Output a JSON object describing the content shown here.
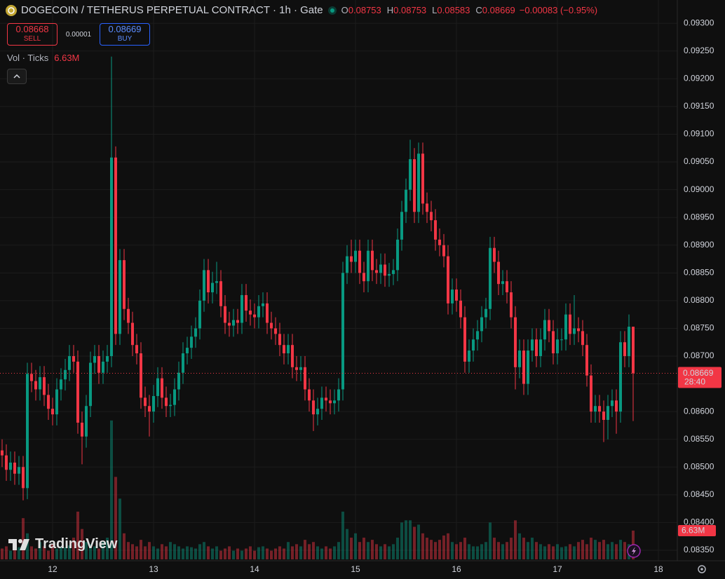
{
  "chart_data": {
    "type": "candlestick",
    "title": "DOGECOIN / TETHERUS PERPETUAL CONTRACT · 1h · Gate",
    "ohlc": [
      {
        "label": "O",
        "value": "0.08753"
      },
      {
        "label": "H",
        "value": "0.08753"
      },
      {
        "label": "L",
        "value": "0.08583"
      },
      {
        "label": "C",
        "value": "0.08669"
      }
    ],
    "change": "−0.00083 (−0.95%)",
    "sell": {
      "price": "0.08668",
      "label": "SELL"
    },
    "spread": "0.00001",
    "buy": {
      "price": "0.08669",
      "label": "BUY"
    },
    "volume_legend": {
      "label": "Vol · Ticks",
      "value": "6.63M"
    },
    "brand": "TradingView",
    "up_color": "#089981",
    "down_color": "#f23645",
    "grid": true,
    "xlim": [
      275.5,
      436.5
    ],
    "xticks": [
      {
        "value": 288,
        "label": "12"
      },
      {
        "value": 312,
        "label": "13"
      },
      {
        "value": 336,
        "label": "14"
      },
      {
        "value": 360,
        "label": "15"
      },
      {
        "value": 384,
        "label": "16"
      },
      {
        "value": 408,
        "label": "17"
      },
      {
        "value": 432,
        "label": "18"
      }
    ],
    "ylim": [
      0.08331,
      0.09342
    ],
    "yticks": [
      {
        "value": 0.0835,
        "label": "0.08350"
      },
      {
        "value": 0.084,
        "label": "0.08400"
      },
      {
        "value": 0.0845,
        "label": "0.08450"
      },
      {
        "value": 0.085,
        "label": "0.08500"
      },
      {
        "value": 0.0855,
        "label": "0.08550"
      },
      {
        "value": 0.086,
        "label": "0.08600"
      },
      {
        "value": 0.0865,
        "label": "0.08650"
      },
      {
        "value": 0.087,
        "label": "0.08700"
      },
      {
        "value": 0.0875,
        "label": "0.08750"
      },
      {
        "value": 0.088,
        "label": "0.08800"
      },
      {
        "value": 0.0885,
        "label": "0.08850"
      },
      {
        "value": 0.089,
        "label": "0.08900"
      },
      {
        "value": 0.0895,
        "label": "0.08950"
      },
      {
        "value": 0.09,
        "label": "0.09000"
      },
      {
        "value": 0.0905,
        "label": "0.09050"
      },
      {
        "value": 0.091,
        "label": "0.09100"
      },
      {
        "value": 0.0915,
        "label": "0.09150"
      },
      {
        "value": 0.092,
        "label": "0.09200"
      },
      {
        "value": 0.0925,
        "label": "0.09250"
      },
      {
        "value": 0.093,
        "label": "0.09300"
      }
    ],
    "last_price": {
      "value": 0.08669,
      "label": "0.08669"
    },
    "countdown": "28:40",
    "last_volume": {
      "value": 6.63,
      "label": "6.63M"
    },
    "volume_lim": [
      0,
      32.3
    ],
    "x": [
      276,
      277,
      278,
      279,
      280,
      281,
      282,
      283,
      284,
      285,
      286,
      287,
      288,
      289,
      290,
      291,
      292,
      293,
      294,
      295,
      296,
      297,
      298,
      299,
      300,
      301,
      302,
      303,
      304,
      305,
      306,
      307,
      308,
      309,
      310,
      311,
      312,
      313,
      314,
      315,
      316,
      317,
      318,
      319,
      320,
      321,
      322,
      323,
      324,
      325,
      326,
      327,
      328,
      329,
      330,
      331,
      332,
      333,
      334,
      335,
      336,
      337,
      338,
      339,
      340,
      341,
      342,
      343,
      344,
      345,
      346,
      347,
      348,
      349,
      350,
      351,
      352,
      353,
      354,
      355,
      356,
      357,
      358,
      359,
      360,
      361,
      362,
      363,
      364,
      365,
      366,
      367,
      368,
      369,
      370,
      371,
      372,
      373,
      374,
      375,
      376,
      377,
      378,
      379,
      380,
      381,
      382,
      383,
      384,
      385,
      386,
      387,
      388,
      389,
      390,
      391,
      392,
      393,
      394,
      395,
      396,
      397,
      398,
      399,
      400,
      401,
      402,
      403,
      404,
      405,
      406,
      407,
      408,
      409,
      410,
      411,
      412,
      413,
      414,
      415,
      416,
      417,
      418,
      419,
      420,
      421,
      422,
      423,
      424,
      425,
      426
    ],
    "open": [
      0.0853,
      0.08521,
      0.08495,
      0.08508,
      0.08488,
      0.085,
      0.08462,
      0.08668,
      0.08655,
      0.0864,
      0.08662,
      0.0863,
      0.08605,
      0.08595,
      0.0864,
      0.08658,
      0.08675,
      0.087,
      0.0869,
      0.0858,
      0.08555,
      0.0861,
      0.08688,
      0.087,
      0.0867,
      0.0869,
      0.087,
      0.09058,
      0.0874,
      0.08873,
      0.08785,
      0.0876,
      0.0872,
      0.08705,
      0.08625,
      0.0861,
      0.086,
      0.08628,
      0.0866,
      0.08625,
      0.0861,
      0.08612,
      0.0864,
      0.0867,
      0.08705,
      0.08715,
      0.08735,
      0.0875,
      0.088,
      0.08855,
      0.08815,
      0.08832,
      0.08835,
      0.0879,
      0.0876,
      0.08755,
      0.08765,
      0.0876,
      0.0881,
      0.08782,
      0.08775,
      0.0877,
      0.0879,
      0.08795,
      0.0876,
      0.0875,
      0.0874,
      0.0872,
      0.08705,
      0.0872,
      0.0868,
      0.08675,
      0.0868,
      0.0864,
      0.0862,
      0.08595,
      0.08605,
      0.08625,
      0.0862,
      0.08615,
      0.0862,
      0.0864,
      0.0885,
      0.0888,
      0.0887,
      0.0889,
      0.0885,
      0.08835,
      0.0889,
      0.08855,
      0.0885,
      0.08865,
      0.08845,
      0.08848,
      0.08855,
      0.0891,
      0.0896,
      0.09,
      0.09055,
      0.0896,
      0.09065,
      0.08975,
      0.0896,
      0.08945,
      0.0891,
      0.089,
      0.0888,
      0.08795,
      0.0882,
      0.088,
      0.0877,
      0.0869,
      0.0871,
      0.0873,
      0.08745,
      0.0877,
      0.08785,
      0.08895,
      0.0887,
      0.0883,
      0.08835,
      0.08815,
      0.0877,
      0.0868,
      0.0871,
      0.0865,
      0.0871,
      0.0873,
      0.087,
      0.0873,
      0.08765,
      0.08745,
      0.08705,
      0.0873,
      0.0873,
      0.08775,
      0.0874,
      0.0875,
      0.08745,
      0.0872,
      0.08665,
      0.086,
      0.0861,
      0.086,
      0.08585,
      0.0861,
      0.0862,
      0.086,
      0.08725,
      0.087,
      0.08753
    ],
    "high": [
      0.0855,
      0.08541,
      0.08528,
      0.08528,
      0.0852,
      0.0852,
      0.08688,
      0.08688,
      0.08675,
      0.08682,
      0.08682,
      0.0865,
      0.08625,
      0.0866,
      0.08678,
      0.08695,
      0.0872,
      0.0872,
      0.0871,
      0.086,
      0.0863,
      0.08708,
      0.0872,
      0.0872,
      0.0871,
      0.0872,
      0.0924,
      0.09078,
      0.08893,
      0.08893,
      0.08805,
      0.0878,
      0.0874,
      0.08725,
      0.08645,
      0.0863,
      0.08648,
      0.0868,
      0.0868,
      0.08645,
      0.08632,
      0.0866,
      0.0869,
      0.08725,
      0.08735,
      0.08755,
      0.0877,
      0.0882,
      0.08875,
      0.08875,
      0.08852,
      0.0887,
      0.08855,
      0.0881,
      0.0878,
      0.08785,
      0.08785,
      0.0883,
      0.0883,
      0.08802,
      0.08795,
      0.0881,
      0.08815,
      0.08815,
      0.0878,
      0.0877,
      0.0876,
      0.0874,
      0.0874,
      0.0874,
      0.087,
      0.087,
      0.087,
      0.0866,
      0.0864,
      0.08625,
      0.08645,
      0.08645,
      0.0864,
      0.0864,
      0.0866,
      0.0887,
      0.089,
      0.0891,
      0.0891,
      0.0891,
      0.0887,
      0.0891,
      0.0891,
      0.08875,
      0.08885,
      0.08885,
      0.08868,
      0.08875,
      0.0893,
      0.0898,
      0.0902,
      0.0909,
      0.09075,
      0.09085,
      0.09085,
      0.08995,
      0.0898,
      0.08965,
      0.0893,
      0.0892,
      0.089,
      0.0884,
      0.0884,
      0.0882,
      0.0879,
      0.0873,
      0.0875,
      0.08765,
      0.0879,
      0.08805,
      0.08915,
      0.08915,
      0.0889,
      0.08855,
      0.08855,
      0.08835,
      0.0879,
      0.0873,
      0.0873,
      0.0873,
      0.0875,
      0.0875,
      0.0875,
      0.08785,
      0.08785,
      0.08765,
      0.0875,
      0.0875,
      0.08795,
      0.08795,
      0.0881,
      0.0877,
      0.08765,
      0.0874,
      0.08685,
      0.0863,
      0.0863,
      0.0862,
      0.0863,
      0.0864,
      0.0864,
      0.08745,
      0.08745,
      0.08775,
      0.08753
    ],
    "low": [
      0.085,
      0.08475,
      0.08475,
      0.08468,
      0.08468,
      0.0844,
      0.08442,
      0.08635,
      0.0862,
      0.0862,
      0.0861,
      0.08585,
      0.08575,
      0.08575,
      0.0862,
      0.08638,
      0.08655,
      0.0867,
      0.0856,
      0.08505,
      0.08535,
      0.0859,
      0.08668,
      0.0865,
      0.0865,
      0.0867,
      0.0868,
      0.0872,
      0.0872,
      0.08765,
      0.0874,
      0.087,
      0.08685,
      0.08605,
      0.0859,
      0.08555,
      0.0858,
      0.08608,
      0.08605,
      0.0859,
      0.0859,
      0.08592,
      0.0862,
      0.0865,
      0.08685,
      0.08695,
      0.08715,
      0.0873,
      0.0878,
      0.08795,
      0.08795,
      0.08812,
      0.0877,
      0.0874,
      0.08735,
      0.08735,
      0.0874,
      0.0874,
      0.08762,
      0.08755,
      0.0875,
      0.0875,
      0.0877,
      0.0874,
      0.0873,
      0.0872,
      0.087,
      0.08685,
      0.08685,
      0.0866,
      0.08655,
      0.08655,
      0.0862,
      0.086,
      0.08565,
      0.08575,
      0.08585,
      0.086,
      0.08595,
      0.08595,
      0.086,
      0.0862,
      0.0883,
      0.0885,
      0.0885,
      0.0883,
      0.08815,
      0.08815,
      0.08835,
      0.0883,
      0.0883,
      0.08825,
      0.08825,
      0.08828,
      0.08835,
      0.0889,
      0.0894,
      0.0898,
      0.0894,
      0.0894,
      0.08955,
      0.0894,
      0.08925,
      0.0889,
      0.0888,
      0.0886,
      0.08775,
      0.08775,
      0.0878,
      0.0875,
      0.0867,
      0.0867,
      0.0869,
      0.0871,
      0.08725,
      0.0875,
      0.08765,
      0.0885,
      0.0881,
      0.0881,
      0.08795,
      0.0875,
      0.0864,
      0.0866,
      0.0863,
      0.0863,
      0.0869,
      0.0868,
      0.0868,
      0.0871,
      0.08725,
      0.08685,
      0.08685,
      0.0871,
      0.0871,
      0.0872,
      0.0872,
      0.08725,
      0.087,
      0.08645,
      0.0858,
      0.0858,
      0.0858,
      0.08545,
      0.0855,
      0.0859,
      0.0856,
      0.0858,
      0.0868,
      0.0868,
      0.08583
    ],
    "close": [
      0.08521,
      0.08495,
      0.08508,
      0.08488,
      0.085,
      0.08462,
      0.08668,
      0.08655,
      0.0864,
      0.08662,
      0.0863,
      0.08605,
      0.08595,
      0.0864,
      0.08658,
      0.08675,
      0.087,
      0.0869,
      0.0858,
      0.08555,
      0.0861,
      0.08688,
      0.087,
      0.0867,
      0.0869,
      0.087,
      0.09058,
      0.0874,
      0.08873,
      0.08785,
      0.0876,
      0.0872,
      0.08705,
      0.08625,
      0.0861,
      0.086,
      0.08628,
      0.0866,
      0.08625,
      0.0861,
      0.08612,
      0.0864,
      0.0867,
      0.08705,
      0.08715,
      0.08735,
      0.0875,
      0.088,
      0.08855,
      0.08815,
      0.08832,
      0.08835,
      0.0879,
      0.0876,
      0.08755,
      0.08765,
      0.0876,
      0.0881,
      0.08782,
      0.08775,
      0.0877,
      0.0879,
      0.08795,
      0.0876,
      0.0875,
      0.0874,
      0.0872,
      0.08705,
      0.0872,
      0.0868,
      0.08675,
      0.0868,
      0.0864,
      0.0862,
      0.08595,
      0.08605,
      0.08625,
      0.0862,
      0.08615,
      0.0862,
      0.0864,
      0.0885,
      0.0888,
      0.0887,
      0.0889,
      0.0885,
      0.08835,
      0.0889,
      0.08855,
      0.0885,
      0.08865,
      0.08845,
      0.08848,
      0.08855,
      0.0891,
      0.0896,
      0.09,
      0.09055,
      0.0896,
      0.09065,
      0.08975,
      0.0896,
      0.08945,
      0.0891,
      0.089,
      0.0888,
      0.08795,
      0.0882,
      0.088,
      0.0877,
      0.0869,
      0.0871,
      0.0873,
      0.08745,
      0.0877,
      0.08785,
      0.08895,
      0.0887,
      0.0883,
      0.08835,
      0.08815,
      0.0877,
      0.0868,
      0.0871,
      0.0865,
      0.0871,
      0.0873,
      0.087,
      0.0873,
      0.08765,
      0.08745,
      0.08705,
      0.0873,
      0.0873,
      0.08775,
      0.0874,
      0.0875,
      0.08745,
      0.0872,
      0.08665,
      0.086,
      0.0861,
      0.086,
      0.08585,
      0.0861,
      0.0862,
      0.086,
      0.08725,
      0.087,
      0.08753,
      0.08669
    ],
    "volume": [
      2.5,
      3,
      2,
      3.5,
      2.8,
      9.5,
      6,
      3,
      2.5,
      4,
      3,
      2,
      3.5,
      2.5,
      3,
      2.8,
      3.2,
      5,
      11,
      7,
      4,
      3.5,
      3,
      2.5,
      4,
      5,
      32,
      19,
      14,
      6,
      4,
      3.5,
      3,
      4.5,
      3,
      4,
      3,
      2.5,
      3.5,
      3,
      4,
      3.5,
      3,
      2.5,
      3,
      2.8,
      2.5,
      3.5,
      4,
      3,
      2.5,
      3,
      2,
      2.5,
      3,
      2,
      2.5,
      2,
      2.5,
      3,
      2,
      2.8,
      3,
      2.5,
      2,
      2.5,
      3,
      2.5,
      4,
      3,
      3.5,
      3,
      4.5,
      3.5,
      4,
      3,
      2.5,
      3,
      2.5,
      3,
      4,
      11,
      7,
      5,
      6,
      4,
      5,
      4,
      4.5,
      3.5,
      3,
      3.5,
      3,
      3.5,
      5,
      8.5,
      9,
      9,
      7.5,
      8,
      6,
      5,
      4.5,
      4,
      4.5,
      5.5,
      6,
      4,
      3.5,
      4,
      5,
      3.5,
      3,
      3,
      3.5,
      4,
      8.5,
      5,
      4,
      3.5,
      4,
      5,
      9,
      6,
      5,
      4,
      5,
      4,
      3.5,
      3,
      3.5,
      3,
      3.5,
      2.8,
      3,
      3.5,
      3,
      4,
      4.5,
      3.5,
      5,
      4.5,
      4,
      4.5,
      3.5,
      4,
      3.5,
      4.5,
      4,
      3.5,
      6.63
    ]
  }
}
